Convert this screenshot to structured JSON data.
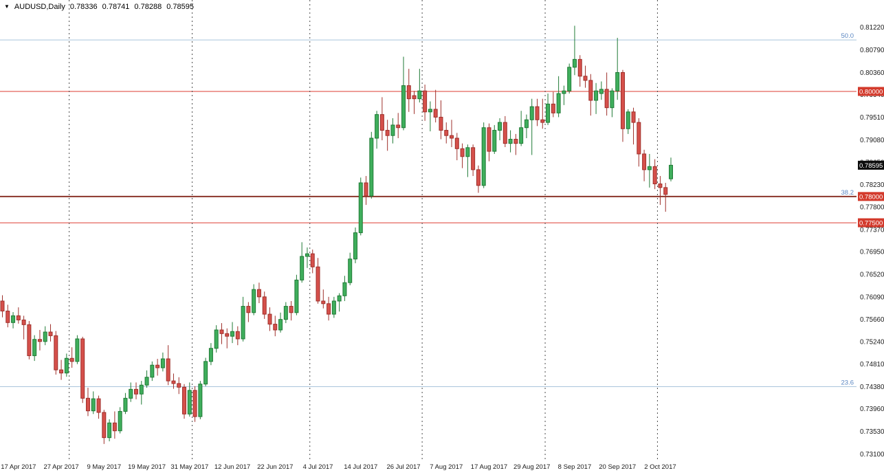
{
  "header": {
    "symbol_period": "AUDUSD,Daily",
    "open": "0.78336",
    "high": "0.78741",
    "low": "0.78288",
    "close": "0.78595",
    "dropdown_icon": "▼"
  },
  "chart_data": {
    "type": "candlestick",
    "symbol": "AUDUSD",
    "timeframe": "Daily",
    "ylim": [
      0.73,
      0.8174
    ],
    "grid": "off",
    "legend": "none",
    "current_price": "0.78595",
    "current_bar": {
      "open": 0.78336,
      "high": 0.78741,
      "low": 0.78288,
      "close": 0.78595
    },
    "y_axis_labels": [
      "0.81220",
      "0.80790",
      "0.80360",
      "0.79940",
      "0.79510",
      "0.79080",
      "0.78650",
      "0.78230",
      "0.77800",
      "0.77370",
      "0.76950",
      "0.76520",
      "0.76090",
      "0.75660",
      "0.75240",
      "0.74810",
      "0.74380",
      "0.73960",
      "0.73530",
      "0.73100"
    ],
    "x_axis_labels": [
      {
        "bar": 3,
        "label": "17 Apr 2017"
      },
      {
        "bar": 11,
        "label": "27 Apr 2017"
      },
      {
        "bar": 19,
        "label": "9 May 2017"
      },
      {
        "bar": 27,
        "label": "19 May 2017"
      },
      {
        "bar": 35,
        "label": "31 May 2017"
      },
      {
        "bar": 43,
        "label": "12 Jun 2017"
      },
      {
        "bar": 51,
        "label": "22 Jun 2017"
      },
      {
        "bar": 59,
        "label": "4 Jul 2017"
      },
      {
        "bar": 67,
        "label": "14 Jul 2017"
      },
      {
        "bar": 75,
        "label": "26 Jul 2017"
      },
      {
        "bar": 83,
        "label": "7 Aug 2017"
      },
      {
        "bar": 91,
        "label": "17 Aug 2017"
      },
      {
        "bar": 99,
        "label": "29 Aug 2017"
      },
      {
        "bar": 107,
        "label": "8 Sep 2017"
      },
      {
        "bar": 115,
        "label": "20 Sep 2017"
      },
      {
        "bar": 123,
        "label": "2 Oct 2017"
      }
    ],
    "month_separator_bars": [
      13,
      36,
      58,
      79,
      102,
      123
    ],
    "fib_levels": [
      {
        "label": "50.0",
        "price": 0.8098
      },
      {
        "label": "38.2",
        "price": 0.78
      },
      {
        "label": "23.6",
        "price": 0.7438
      }
    ],
    "price_lines": [
      {
        "price": 0.8,
        "axis_label": "0.80000",
        "color": "#dd3b30",
        "badge_color": "#d33a2c",
        "width": 1
      },
      {
        "price": 0.78,
        "axis_label": "0.78000",
        "color": "#8b342a",
        "badge_color": "#d33a2c",
        "width": 2
      },
      {
        "price": 0.775,
        "axis_label": "0.77500",
        "color": "#dd3b30",
        "badge_color": "#d33a2c",
        "width": 1
      }
    ],
    "colors": {
      "background": "#ffffff",
      "up": "#3fae5c",
      "up_border": "#1f7a35",
      "down": "#d5504b",
      "down_border": "#9e2f2a",
      "separator": "#4a4a4a",
      "fib_line": "#a9c4dc",
      "fib_text": "#5a86c2",
      "axis_text": "#1a1a1a",
      "badge_black": "#0d0d0d"
    },
    "candles": [
      [
        0.7601,
        0.7612,
        0.757,
        0.7582
      ],
      [
        0.7582,
        0.7594,
        0.7551,
        0.756
      ],
      [
        0.756,
        0.758,
        0.7549,
        0.7573
      ],
      [
        0.7573,
        0.7589,
        0.7558,
        0.7565
      ],
      [
        0.7565,
        0.7573,
        0.7528,
        0.7556
      ],
      [
        0.7556,
        0.7563,
        0.749,
        0.7497
      ],
      [
        0.7497,
        0.7536,
        0.7487,
        0.7528
      ],
      [
        0.7528,
        0.7546,
        0.7507,
        0.7524
      ],
      [
        0.7524,
        0.7553,
        0.7517,
        0.7542
      ],
      [
        0.7542,
        0.7557,
        0.7524,
        0.7535
      ],
      [
        0.7535,
        0.7544,
        0.7461,
        0.747
      ],
      [
        0.747,
        0.7489,
        0.7451,
        0.7464
      ],
      [
        0.7464,
        0.7501,
        0.7457,
        0.7492
      ],
      [
        0.7492,
        0.7513,
        0.7474,
        0.7486
      ],
      [
        0.7486,
        0.7536,
        0.7481,
        0.7529
      ],
      [
        0.7529,
        0.7533,
        0.7407,
        0.7416
      ],
      [
        0.7416,
        0.7436,
        0.7382,
        0.7392
      ],
      [
        0.7392,
        0.7429,
        0.7386,
        0.7415
      ],
      [
        0.7415,
        0.7421,
        0.7377,
        0.7389
      ],
      [
        0.7389,
        0.7394,
        0.7329,
        0.7341
      ],
      [
        0.7341,
        0.7376,
        0.7334,
        0.7369
      ],
      [
        0.7369,
        0.7391,
        0.7339,
        0.7354
      ],
      [
        0.7354,
        0.7399,
        0.7349,
        0.7391
      ],
      [
        0.7391,
        0.7426,
        0.7386,
        0.7416
      ],
      [
        0.7416,
        0.7446,
        0.7409,
        0.7433
      ],
      [
        0.7433,
        0.7446,
        0.7414,
        0.7424
      ],
      [
        0.7424,
        0.7449,
        0.7404,
        0.7441
      ],
      [
        0.7441,
        0.7469,
        0.7436,
        0.7456
      ],
      [
        0.7456,
        0.7486,
        0.7449,
        0.7479
      ],
      [
        0.7479,
        0.7491,
        0.7459,
        0.7474
      ],
      [
        0.7474,
        0.7503,
        0.7467,
        0.7491
      ],
      [
        0.7491,
        0.7517,
        0.7441,
        0.7449
      ],
      [
        0.7449,
        0.7463,
        0.7434,
        0.7444
      ],
      [
        0.7444,
        0.7456,
        0.7424,
        0.7437
      ],
      [
        0.7437,
        0.7443,
        0.7377,
        0.7386
      ],
      [
        0.7386,
        0.7446,
        0.7381,
        0.7431
      ],
      [
        0.7431,
        0.7439,
        0.7371,
        0.7381
      ],
      [
        0.7381,
        0.7449,
        0.7376,
        0.7443
      ],
      [
        0.7443,
        0.7493,
        0.7439,
        0.7486
      ],
      [
        0.7486,
        0.7521,
        0.7479,
        0.7511
      ],
      [
        0.7511,
        0.7555,
        0.7503,
        0.7546
      ],
      [
        0.7546,
        0.7559,
        0.7519,
        0.7539
      ],
      [
        0.7539,
        0.7549,
        0.7511,
        0.7534
      ],
      [
        0.7534,
        0.7561,
        0.7521,
        0.7543
      ],
      [
        0.7543,
        0.7553,
        0.7517,
        0.7529
      ],
      [
        0.7529,
        0.7609,
        0.7524,
        0.7591
      ],
      [
        0.7591,
        0.7599,
        0.7561,
        0.7579
      ],
      [
        0.7579,
        0.7633,
        0.7574,
        0.7623
      ],
      [
        0.7623,
        0.7636,
        0.7597,
        0.7609
      ],
      [
        0.7609,
        0.7619,
        0.7567,
        0.7576
      ],
      [
        0.7576,
        0.7589,
        0.7544,
        0.7557
      ],
      [
        0.7557,
        0.7573,
        0.7534,
        0.7546
      ],
      [
        0.7546,
        0.7579,
        0.7541,
        0.7566
      ],
      [
        0.7566,
        0.7599,
        0.7559,
        0.7591
      ],
      [
        0.7591,
        0.7601,
        0.7564,
        0.7579
      ],
      [
        0.7579,
        0.7651,
        0.7574,
        0.7641
      ],
      [
        0.7641,
        0.7713,
        0.7636,
        0.7686
      ],
      [
        0.7686,
        0.7703,
        0.7664,
        0.7691
      ],
      [
        0.7691,
        0.7699,
        0.7654,
        0.7666
      ],
      [
        0.7666,
        0.7683,
        0.7596,
        0.7601
      ],
      [
        0.7601,
        0.7623,
        0.7587,
        0.7596
      ],
      [
        0.7596,
        0.7609,
        0.7564,
        0.7576
      ],
      [
        0.7576,
        0.7609,
        0.7569,
        0.7601
      ],
      [
        0.7601,
        0.7616,
        0.7581,
        0.7611
      ],
      [
        0.7611,
        0.7649,
        0.7601,
        0.7636
      ],
      [
        0.7636,
        0.7693,
        0.7631,
        0.7681
      ],
      [
        0.7681,
        0.7741,
        0.7673,
        0.7731
      ],
      [
        0.7731,
        0.7836,
        0.7726,
        0.7826
      ],
      [
        0.7826,
        0.7839,
        0.7784,
        0.7801
      ],
      [
        0.7801,
        0.7923,
        0.7796,
        0.7911
      ],
      [
        0.7911,
        0.7963,
        0.7891,
        0.7956
      ],
      [
        0.7956,
        0.7989,
        0.7907,
        0.7926
      ],
      [
        0.7926,
        0.7946,
        0.7887,
        0.7916
      ],
      [
        0.7916,
        0.7949,
        0.7901,
        0.7936
      ],
      [
        0.7936,
        0.7959,
        0.7911,
        0.7931
      ],
      [
        0.7931,
        0.8066,
        0.7926,
        0.8011
      ],
      [
        0.8011,
        0.8043,
        0.7961,
        0.7986
      ],
      [
        0.7992,
        0.8001,
        0.7957,
        0.7986
      ],
      [
        0.7986,
        0.8043,
        0.7979,
        0.8001
      ],
      [
        0.8001,
        0.8013,
        0.7944,
        0.7961
      ],
      [
        0.7961,
        0.7981,
        0.7924,
        0.7966
      ],
      [
        0.7966,
        0.8003,
        0.7941,
        0.7951
      ],
      [
        0.7951,
        0.7983,
        0.7909,
        0.7926
      ],
      [
        0.7926,
        0.7941,
        0.7901,
        0.7916
      ],
      [
        0.7916,
        0.7946,
        0.7894,
        0.7911
      ],
      [
        0.7911,
        0.7921,
        0.7869,
        0.7891
      ],
      [
        0.7891,
        0.7901,
        0.7854,
        0.7876
      ],
      [
        0.7876,
        0.7899,
        0.7837,
        0.7893
      ],
      [
        0.7893,
        0.7899,
        0.7839,
        0.7851
      ],
      [
        0.7851,
        0.7859,
        0.7807,
        0.7821
      ],
      [
        0.7821,
        0.7941,
        0.7816,
        0.7931
      ],
      [
        0.7931,
        0.7939,
        0.7867,
        0.7886
      ],
      [
        0.7886,
        0.7936,
        0.7881,
        0.7926
      ],
      [
        0.7926,
        0.7949,
        0.7907,
        0.7941
      ],
      [
        0.7941,
        0.7953,
        0.7894,
        0.7901
      ],
      [
        0.7901,
        0.7926,
        0.7884,
        0.7909
      ],
      [
        0.7909,
        0.7919,
        0.7879,
        0.7901
      ],
      [
        0.7901,
        0.7963,
        0.7896,
        0.7931
      ],
      [
        0.7931,
        0.7956,
        0.7911,
        0.7946
      ],
      [
        0.7946,
        0.7986,
        0.7879,
        0.7971
      ],
      [
        0.7971,
        0.7986,
        0.7934,
        0.7946
      ],
      [
        0.7946,
        0.7986,
        0.7929,
        0.7941
      ],
      [
        0.7941,
        0.7996,
        0.7936,
        0.7976
      ],
      [
        0.7976,
        0.7999,
        0.7951,
        0.7959
      ],
      [
        0.7959,
        0.8029,
        0.7951,
        0.7996
      ],
      [
        0.7996,
        0.8011,
        0.7974,
        0.8001
      ],
      [
        0.8001,
        0.8053,
        0.7996,
        0.8046
      ],
      [
        0.8046,
        0.8125,
        0.8031,
        0.8061
      ],
      [
        0.8061,
        0.8069,
        0.8009,
        0.8029
      ],
      [
        0.8029,
        0.8049,
        0.8007,
        0.8021
      ],
      [
        0.8021,
        0.8033,
        0.7954,
        0.7983
      ],
      [
        0.7983,
        0.8016,
        0.7957,
        0.8001
      ],
      [
        0.7996,
        0.8019,
        0.7984,
        0.8004
      ],
      [
        0.8004,
        0.8036,
        0.7954,
        0.7969
      ],
      [
        0.7969,
        0.8006,
        0.7951,
        0.8001
      ],
      [
        0.8001,
        0.8102,
        0.7984,
        0.8036
      ],
      [
        0.8036,
        0.8041,
        0.7904,
        0.7929
      ],
      [
        0.7929,
        0.7966,
        0.7919,
        0.7961
      ],
      [
        0.7961,
        0.7969,
        0.7899,
        0.7941
      ],
      [
        0.7941,
        0.7949,
        0.7857,
        0.7881
      ],
      [
        0.7881,
        0.7889,
        0.7829,
        0.7851
      ],
      [
        0.7851,
        0.7881,
        0.7817,
        0.7857
      ],
      [
        0.7857,
        0.7871,
        0.7814,
        0.7824
      ],
      [
        0.7824,
        0.7839,
        0.7784,
        0.7817
      ],
      [
        0.7817,
        0.7826,
        0.7771,
        0.7804
      ],
      [
        0.78336,
        0.78741,
        0.78288,
        0.78595
      ]
    ]
  }
}
